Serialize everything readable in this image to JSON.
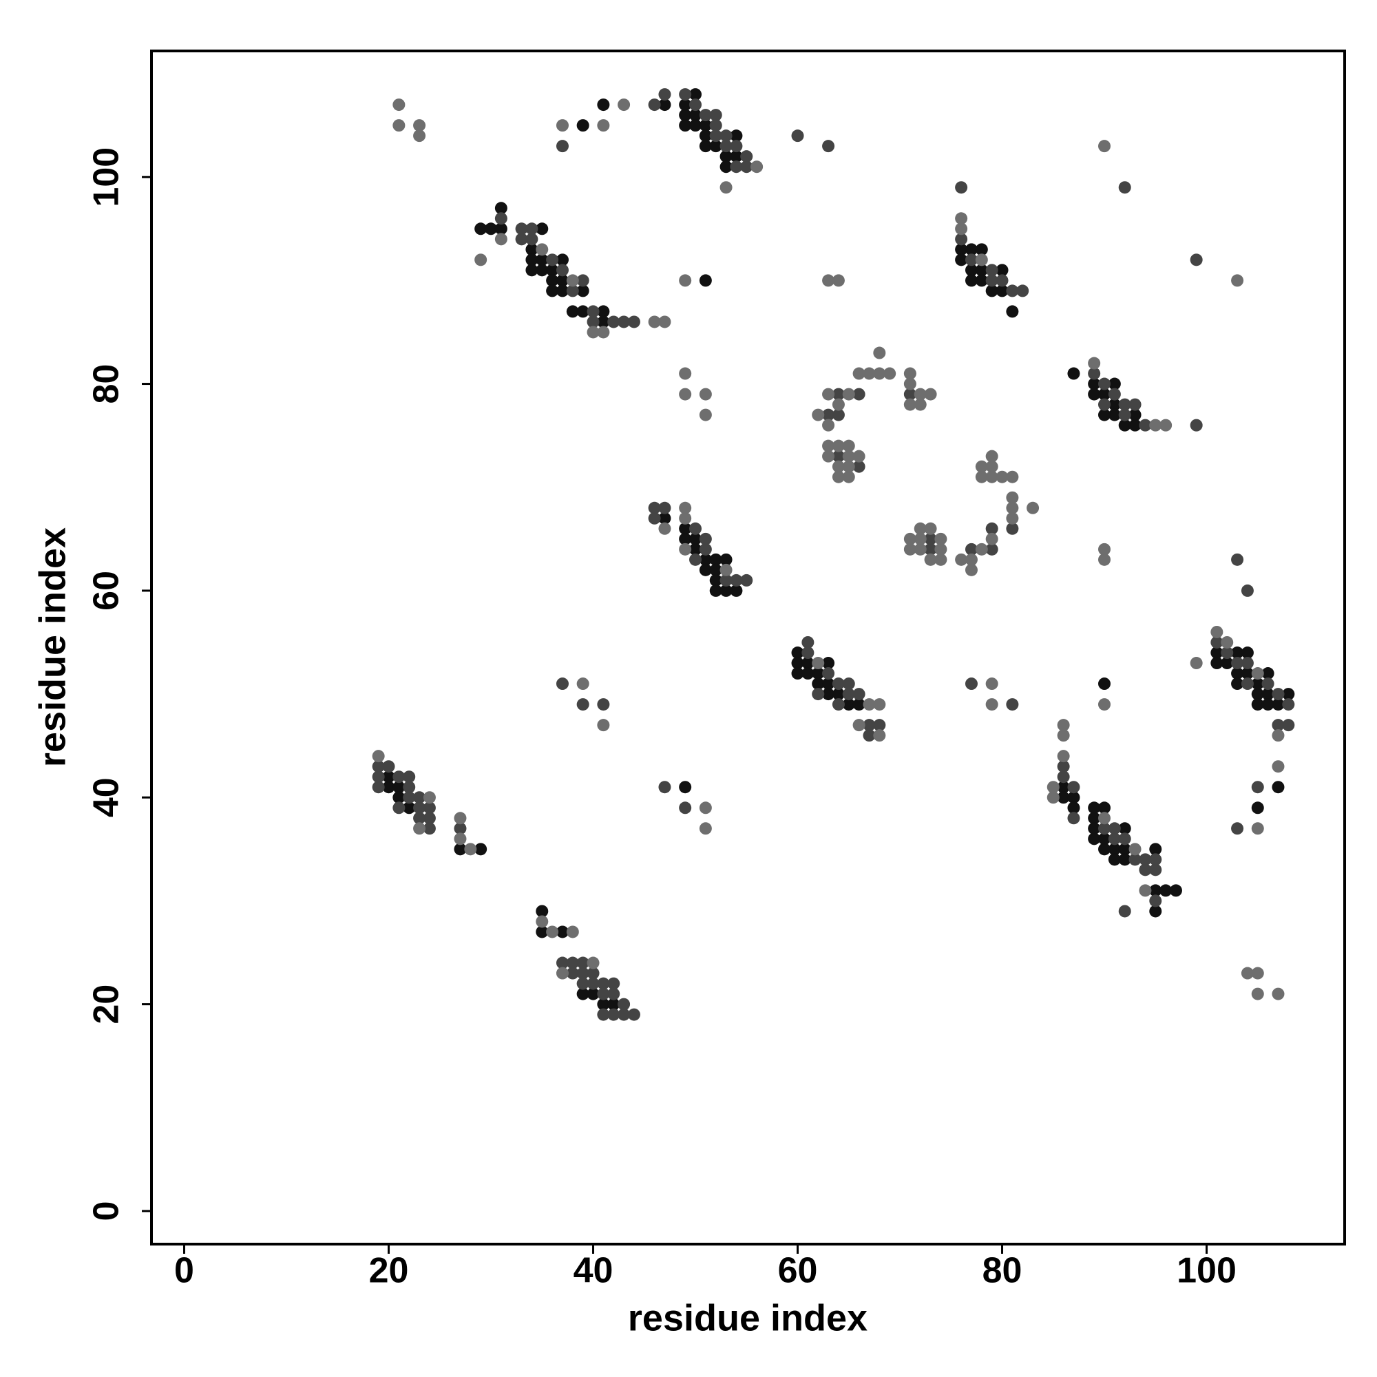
{
  "chart_data": {
    "type": "scatter",
    "xlabel": "residue index",
    "ylabel": "residue index",
    "xlim": [
      -3.2,
      113.5
    ],
    "ylim": [
      -3.2,
      112.2
    ],
    "xticks": [
      0,
      20,
      40,
      60,
      80,
      100
    ],
    "yticks": [
      0,
      20,
      40,
      60,
      80,
      100
    ],
    "series": [
      {
        "color": "#111111",
        "x": [
          35,
          35,
          37,
          39,
          40,
          41,
          42,
          20,
          20,
          21,
          21,
          22,
          27,
          29,
          29,
          30,
          31,
          31,
          35,
          34,
          34,
          35,
          37,
          34,
          35,
          36,
          36,
          37,
          36,
          37,
          39,
          38,
          39,
          41,
          41,
          39,
          41,
          47,
          50,
          49,
          49,
          50,
          49,
          50,
          51,
          51,
          54,
          51,
          52,
          53,
          54,
          53,
          51,
          49,
          47,
          49,
          49,
          50,
          50,
          51,
          52,
          53,
          51,
          52,
          52,
          52,
          53,
          54,
          60,
          60,
          61,
          63,
          60,
          61,
          62,
          62,
          63,
          63,
          64,
          65,
          66,
          76,
          77,
          78,
          76,
          77,
          78,
          80,
          77,
          78,
          79,
          80,
          81,
          87,
          89,
          91,
          89,
          90,
          91,
          90,
          91,
          93,
          92,
          93,
          90,
          101,
          103,
          104,
          101,
          102,
          103,
          104,
          106,
          103,
          105,
          105,
          106,
          108,
          105,
          106,
          107,
          107,
          105,
          86,
          86,
          87,
          87,
          89,
          90,
          89,
          89,
          92,
          89,
          90,
          90,
          91,
          92,
          91,
          92,
          95,
          95,
          96,
          97,
          95
        ],
        "y": [
          29,
          27,
          27,
          21,
          21,
          20,
          20,
          42,
          41,
          41,
          40,
          39,
          35,
          35,
          95,
          95,
          95,
          97,
          95,
          93,
          92,
          92,
          92,
          91,
          91,
          91,
          90,
          90,
          89,
          89,
          89,
          87,
          87,
          87,
          86,
          105,
          107,
          107,
          108,
          107,
          106,
          106,
          105,
          105,
          105,
          104,
          104,
          103,
          103,
          102,
          102,
          101,
          90,
          41,
          67,
          66,
          65,
          65,
          64,
          63,
          63,
          63,
          62,
          62,
          61,
          60,
          60,
          60,
          54,
          53,
          53,
          53,
          52,
          52,
          52,
          51,
          51,
          50,
          50,
          49,
          49,
          93,
          93,
          93,
          92,
          91,
          91,
          91,
          90,
          90,
          89,
          89,
          87,
          81,
          80,
          80,
          79,
          79,
          78,
          77,
          77,
          77,
          76,
          76,
          51,
          54,
          54,
          54,
          53,
          53,
          52,
          52,
          52,
          51,
          51,
          50,
          50,
          50,
          49,
          49,
          49,
          41,
          39,
          41,
          40,
          40,
          39,
          39,
          39,
          38,
          37,
          37,
          36,
          36,
          35,
          35,
          35,
          34,
          34,
          35,
          31,
          31,
          31,
          29
        ]
      },
      {
        "color": "#444444",
        "x": [
          37,
          38,
          39,
          38,
          39,
          40,
          39,
          40,
          41,
          42,
          41,
          42,
          43,
          41,
          42,
          43,
          44,
          19,
          20,
          19,
          21,
          22,
          19,
          22,
          22,
          23,
          21,
          23,
          24,
          23,
          24,
          24,
          27,
          31,
          33,
          34,
          33,
          34,
          36,
          37,
          39,
          38,
          40,
          40,
          42,
          43,
          44,
          37,
          46,
          47,
          49,
          50,
          51,
          52,
          52,
          52,
          53,
          53,
          54,
          55,
          54,
          55,
          60,
          63,
          46,
          47,
          46,
          50,
          51,
          51,
          50,
          53,
          54,
          55,
          37,
          39,
          41,
          47,
          49,
          61,
          61,
          63,
          64,
          65,
          62,
          65,
          64,
          66,
          67,
          68,
          67,
          63,
          64,
          64,
          66,
          71,
          64,
          66,
          81,
          79,
          79,
          77,
          73,
          73,
          76,
          76,
          77,
          79,
          79,
          80,
          81,
          82,
          89,
          90,
          91,
          90,
          92,
          93,
          92,
          94,
          99,
          92,
          99,
          103,
          104,
          77,
          81,
          101,
          102,
          103,
          104,
          104,
          106,
          107,
          108,
          107,
          108,
          105,
          103,
          86,
          86,
          87,
          87,
          90,
          91,
          91,
          92,
          93,
          94,
          94,
          95,
          95,
          95,
          92
        ],
        "y": [
          24,
          24,
          24,
          23,
          23,
          23,
          22,
          22,
          22,
          22,
          21,
          21,
          20,
          19,
          19,
          19,
          19,
          43,
          43,
          42,
          42,
          42,
          41,
          41,
          40,
          40,
          39,
          39,
          39,
          38,
          38,
          37,
          37,
          96,
          95,
          95,
          94,
          94,
          92,
          91,
          90,
          89,
          87,
          86,
          86,
          86,
          86,
          103,
          107,
          108,
          108,
          107,
          106,
          106,
          105,
          104,
          104,
          103,
          103,
          102,
          101,
          101,
          104,
          103,
          68,
          68,
          67,
          66,
          65,
          64,
          63,
          61,
          61,
          61,
          51,
          49,
          49,
          41,
          39,
          55,
          54,
          52,
          51,
          51,
          50,
          50,
          49,
          50,
          47,
          47,
          46,
          77,
          77,
          79,
          79,
          79,
          73,
          72,
          66,
          66,
          64,
          64,
          65,
          64,
          99,
          94,
          92,
          91,
          90,
          90,
          89,
          89,
          81,
          80,
          79,
          78,
          78,
          78,
          77,
          76,
          76,
          99,
          92,
          63,
          60,
          51,
          49,
          55,
          54,
          53,
          53,
          51,
          51,
          50,
          49,
          47,
          47,
          41,
          37,
          43,
          42,
          41,
          38,
          37,
          37,
          36,
          36,
          34,
          34,
          33,
          33,
          34,
          30,
          29
        ]
      },
      {
        "color": "#6e6e6e",
        "x": [
          35,
          36,
          38,
          40,
          37,
          19,
          24,
          23,
          27,
          27,
          28,
          31,
          29,
          35,
          38,
          40,
          41,
          46,
          47,
          21,
          21,
          23,
          23,
          37,
          41,
          43,
          56,
          53,
          49,
          63,
          64,
          49,
          49,
          51,
          51,
          49,
          49,
          47,
          49,
          53,
          39,
          41,
          51,
          51,
          62,
          67,
          68,
          66,
          68,
          62,
          63,
          63,
          65,
          64,
          66,
          67,
          68,
          69,
          68,
          71,
          71,
          72,
          73,
          71,
          72,
          63,
          64,
          65,
          63,
          65,
          66,
          64,
          65,
          64,
          65,
          78,
          79,
          78,
          79,
          79,
          80,
          81,
          81,
          81,
          83,
          81,
          79,
          78,
          77,
          76,
          77,
          71,
          72,
          73,
          71,
          72,
          74,
          72,
          74,
          73,
          74,
          76,
          76,
          78,
          89,
          95,
          96,
          90,
          103,
          90,
          90,
          79,
          79,
          90,
          99,
          101,
          102,
          105,
          107,
          107,
          105,
          86,
          86,
          86,
          85,
          85,
          90,
          93,
          94,
          104,
          105,
          105,
          107
        ],
        "y": [
          28,
          27,
          27,
          24,
          23,
          44,
          40,
          37,
          38,
          36,
          35,
          94,
          92,
          93,
          90,
          85,
          85,
          86,
          86,
          107,
          105,
          105,
          104,
          105,
          105,
          107,
          101,
          99,
          90,
          90,
          90,
          81,
          79,
          79,
          77,
          68,
          67,
          66,
          64,
          62,
          51,
          47,
          39,
          37,
          53,
          49,
          49,
          47,
          46,
          77,
          76,
          79,
          79,
          78,
          81,
          81,
          81,
          81,
          83,
          81,
          80,
          79,
          79,
          78,
          78,
          74,
          74,
          74,
          73,
          73,
          73,
          72,
          72,
          71,
          71,
          72,
          73,
          71,
          72,
          71,
          71,
          71,
          69,
          68,
          68,
          67,
          65,
          64,
          63,
          63,
          62,
          65,
          66,
          66,
          64,
          65,
          65,
          64,
          64,
          63,
          63,
          96,
          95,
          92,
          82,
          76,
          76,
          103,
          90,
          64,
          63,
          51,
          49,
          49,
          53,
          56,
          55,
          52,
          46,
          43,
          37,
          47,
          46,
          44,
          41,
          40,
          38,
          35,
          31,
          23,
          23,
          21,
          21
        ]
      }
    ]
  }
}
